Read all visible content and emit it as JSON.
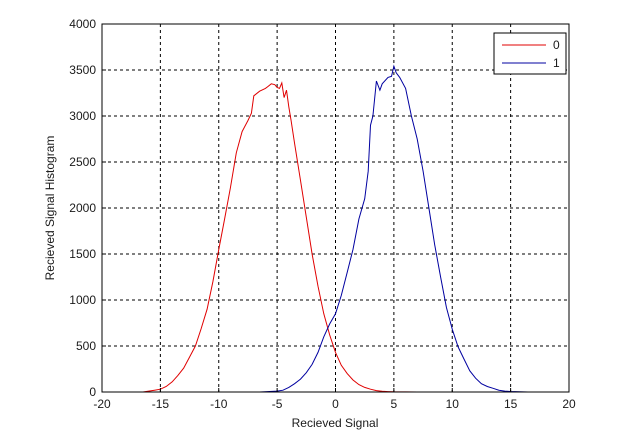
{
  "chart_data": {
    "type": "line",
    "title": "",
    "xlabel": "Recieved Signal",
    "ylabel": "Recieved Signal Histogram",
    "xlim": [
      -20,
      20
    ],
    "ylim": [
      0,
      4000
    ],
    "xticks": [
      -20,
      -15,
      -10,
      -5,
      0,
      5,
      10,
      15,
      20
    ],
    "yticks": [
      0,
      500,
      1000,
      1500,
      2000,
      2500,
      3000,
      3500,
      4000
    ],
    "grid": true,
    "legend_position": "upper right",
    "series": [
      {
        "name": "0",
        "color": "#e00000",
        "x": [
          -16.5,
          -15.5,
          -15,
          -14.5,
          -14,
          -13.5,
          -13,
          -12.5,
          -12,
          -11.5,
          -11,
          -10.5,
          -10,
          -9.5,
          -9,
          -8.5,
          -8,
          -7.5,
          -7.2,
          -7,
          -6.5,
          -6,
          -5.8,
          -5.5,
          -5.2,
          -5,
          -4.8,
          -4.6,
          -4.4,
          -4.2,
          -4,
          -3.8,
          -3.5,
          -3,
          -2.5,
          -2,
          -1.5,
          -1,
          -0.5,
          0,
          0.5,
          1,
          1.5,
          2,
          2.5,
          3,
          3.5,
          4,
          4.5,
          5,
          6,
          7
        ],
        "values": [
          0,
          20,
          30,
          60,
          110,
          180,
          260,
          380,
          500,
          690,
          900,
          1200,
          1550,
          1880,
          2220,
          2600,
          2830,
          2950,
          3030,
          3220,
          3270,
          3300,
          3320,
          3350,
          3340,
          3310,
          3300,
          3360,
          3200,
          3280,
          3100,
          2950,
          2700,
          2300,
          1900,
          1500,
          1150,
          850,
          620,
          430,
          290,
          200,
          130,
          80,
          50,
          30,
          15,
          8,
          4,
          2,
          1,
          0
        ]
      },
      {
        "name": "1",
        "color": "#0000a0",
        "x": [
          -6.5,
          -5,
          -4.5,
          -4,
          -3.5,
          -3,
          -2.5,
          -2,
          -1.5,
          -1,
          -0.5,
          0,
          0.5,
          1,
          1.5,
          2,
          2.5,
          2.8,
          3,
          3.2,
          3.5,
          3.8,
          4,
          4.5,
          4.8,
          5,
          5.2,
          5.5,
          6,
          6.5,
          7,
          7.5,
          8,
          8.5,
          9,
          9.5,
          10,
          10.5,
          11,
          11.5,
          12,
          12.5,
          13,
          13.5,
          14,
          14.5,
          15,
          16.5
        ],
        "values": [
          0,
          10,
          20,
          50,
          90,
          140,
          210,
          300,
          430,
          600,
          740,
          850,
          1050,
          1300,
          1550,
          1880,
          2100,
          2400,
          2900,
          3000,
          3380,
          3280,
          3350,
          3420,
          3430,
          3540,
          3470,
          3420,
          3300,
          3000,
          2750,
          2400,
          2000,
          1600,
          1250,
          920,
          680,
          490,
          360,
          230,
          150,
          90,
          60,
          40,
          20,
          10,
          5,
          0
        ]
      }
    ]
  },
  "axes": {
    "xlabel": "Recieved Signal",
    "ylabel": "Recieved Signal Histogram"
  },
  "legend": {
    "items": [
      {
        "label": "0",
        "color": "#e00000"
      },
      {
        "label": "1",
        "color": "#0000a0"
      }
    ]
  }
}
